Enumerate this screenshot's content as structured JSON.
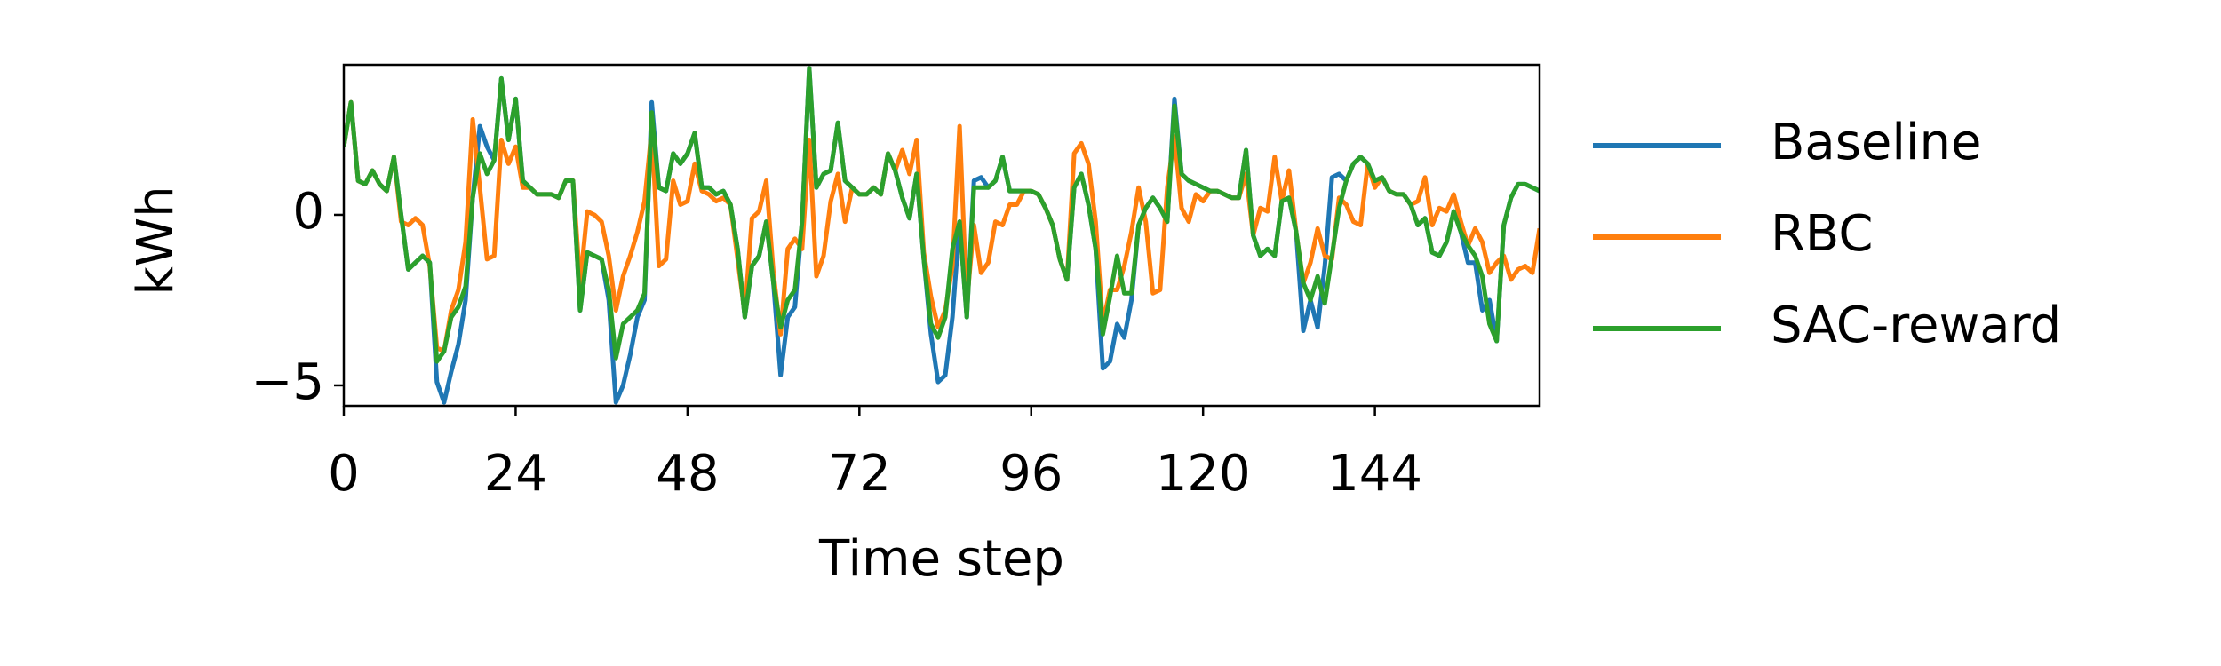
{
  "chart_data": {
    "type": "line",
    "x_label": "Time step",
    "y_label": "kWh",
    "x": [
      0,
      1,
      2,
      3,
      4,
      5,
      6,
      7,
      8,
      9,
      10,
      11,
      12,
      13,
      14,
      15,
      16,
      17,
      18,
      19,
      20,
      21,
      22,
      23,
      24,
      25,
      26,
      27,
      28,
      29,
      30,
      31,
      32,
      33,
      34,
      35,
      36,
      37,
      38,
      39,
      40,
      41,
      42,
      43,
      44,
      45,
      46,
      47,
      48,
      49,
      50,
      51,
      52,
      53,
      54,
      55,
      56,
      57,
      58,
      59,
      60,
      61,
      62,
      63,
      64,
      65,
      66,
      67,
      68,
      69,
      70,
      71,
      72,
      73,
      74,
      75,
      76,
      77,
      78,
      79,
      80,
      81,
      82,
      83,
      84,
      85,
      86,
      87,
      88,
      89,
      90,
      91,
      92,
      93,
      94,
      95,
      96,
      97,
      98,
      99,
      100,
      101,
      102,
      103,
      104,
      105,
      106,
      107,
      108,
      109,
      110,
      111,
      112,
      113,
      114,
      115,
      116,
      117,
      118,
      119,
      120,
      121,
      122,
      123,
      124,
      125,
      126,
      127,
      128,
      129,
      130,
      131,
      132,
      133,
      134,
      135,
      136,
      137,
      138,
      139,
      140,
      141,
      142,
      143,
      144,
      145,
      146,
      147,
      148,
      149,
      150,
      151,
      152,
      153,
      154,
      155,
      156,
      157,
      158,
      159,
      160,
      161,
      162,
      163,
      164,
      165,
      166,
      167
    ],
    "series": [
      {
        "name": "Baseline",
        "color": "#1f77b4",
        "values": [
          2,
          3.3,
          1,
          0.9,
          1.3,
          0.9,
          0.7,
          1.7,
          0,
          -1.6,
          -1.4,
          -1.2,
          -1.4,
          -4.9,
          -5.5,
          -4.6,
          -3.8,
          -2.5,
          0.5,
          2.6,
          2,
          1.6,
          4,
          2.2,
          3.4,
          1,
          0.8,
          0.6,
          0.6,
          0.6,
          0.5,
          1,
          1,
          -2.8,
          -1.1,
          -1.2,
          -1.3,
          -2.5,
          -5.5,
          -5,
          -4.1,
          -3,
          -2.5,
          3.3,
          0.8,
          0.7,
          1.8,
          1.5,
          1.8,
          2.4,
          0.8,
          0.8,
          0.6,
          0.7,
          0.3,
          -1,
          -3,
          -1.5,
          -1.2,
          -0.2,
          -2,
          -4.7,
          -3,
          -2.7,
          -0.2,
          4.3,
          0.8,
          1.2,
          1.3,
          2.7,
          1,
          0.8,
          0.6,
          0.6,
          0.8,
          0.6,
          1.8,
          1.3,
          0.5,
          -0.1,
          1.2,
          -1.3,
          -3.5,
          -4.9,
          -4.7,
          -3,
          -0.2,
          -3,
          1,
          1.1,
          0.8,
          1,
          1.7,
          0.7,
          0.7,
          0.7,
          0.7,
          0.6,
          0.2,
          -0.3,
          -1.3,
          -1.9,
          0.8,
          1.2,
          0.3,
          -1,
          -4.5,
          -4.3,
          -3.2,
          -3.6,
          -2.5,
          -0.3,
          0.2,
          0.5,
          0.2,
          -0.2,
          3.4,
          1.2,
          1,
          0.9,
          0.8,
          0.7,
          0.7,
          0.6,
          0.5,
          0.5,
          1.9,
          -0.6,
          -1.2,
          -1,
          -1.2,
          0.4,
          0.5,
          -0.5,
          -3.4,
          -2.5,
          -3.3,
          -1.5,
          1.1,
          1.2,
          1,
          1.5,
          1.7,
          1.5,
          1,
          1.1,
          0.7,
          0.6,
          0.6,
          0.3,
          -0.3,
          -0.1,
          -1.1,
          -1.2,
          -0.8,
          0.1,
          -0.5,
          -1.4,
          -1.4,
          -2.8,
          -2.5,
          -3.7,
          -0.3,
          0.5,
          0.9,
          0.9,
          0.8,
          0.7
        ]
      },
      {
        "name": "RBC",
        "color": "#ff7f0e",
        "values": [
          2,
          3.3,
          1,
          0.9,
          1.3,
          0.9,
          0.7,
          1.7,
          -0.2,
          -0.3,
          -0.1,
          -0.3,
          -1.5,
          -3.9,
          -4,
          -2.8,
          -2.2,
          -0.8,
          2.8,
          0.8,
          -1.3,
          -1.2,
          2.2,
          1.5,
          2,
          0.8,
          0.8,
          0.6,
          0.6,
          0.6,
          0.5,
          1,
          1,
          -2,
          0.1,
          0,
          -0.2,
          -1.2,
          -2.8,
          -1.8,
          -1.2,
          -0.5,
          0.4,
          2.5,
          -1.5,
          -1.3,
          1,
          0.3,
          0.4,
          1.5,
          0.7,
          0.6,
          0.4,
          0.5,
          0.3,
          -1.3,
          -2.9,
          -0.1,
          0.1,
          1,
          -1.7,
          -3.5,
          -1,
          -0.7,
          -1,
          2.2,
          -1.8,
          -1.2,
          0.4,
          1.2,
          -0.2,
          0.8,
          0.6,
          0.6,
          0.8,
          0.6,
          1.8,
          1.3,
          1.9,
          1.2,
          2.2,
          -1.1,
          -2.4,
          -3.3,
          -2.8,
          -1.5,
          2.6,
          -2.6,
          -0.3,
          -1.7,
          -1.4,
          -0.2,
          -0.3,
          0.3,
          0.3,
          0.7,
          0.7,
          0.6,
          0.2,
          -0.3,
          -1.3,
          -1.9,
          1.8,
          2.1,
          1.5,
          -0.2,
          -3.2,
          -2.2,
          -2.2,
          -1.5,
          -0.5,
          0.8,
          -0.2,
          -2.3,
          -2.2,
          0.8,
          2.3,
          0.2,
          -0.2,
          0.6,
          0.4,
          0.7,
          0.7,
          0.6,
          0.5,
          0.5,
          1.2,
          -0.6,
          0.2,
          0.1,
          1.7,
          0.4,
          1.3,
          -0.5,
          -2,
          -1.4,
          -0.4,
          -1.2,
          -1.3,
          0.5,
          0.3,
          -0.2,
          -0.3,
          1.5,
          0.8,
          1.1,
          0.7,
          0.6,
          0.6,
          0.3,
          0.4,
          1.1,
          -0.3,
          0.2,
          0.1,
          0.6,
          -0.2,
          -0.9,
          -0.4,
          -0.8,
          -1.7,
          -1.4,
          -1.2,
          -1.9,
          -1.6,
          -1.5,
          -1.7,
          -0.4
        ]
      },
      {
        "name": "SAC-reward",
        "color": "#2ca02c",
        "values": [
          2,
          3.3,
          1,
          0.9,
          1.3,
          0.9,
          0.7,
          1.7,
          0,
          -1.6,
          -1.4,
          -1.2,
          -1.4,
          -4.3,
          -4,
          -3,
          -2.7,
          -2.1,
          0.5,
          1.8,
          1.2,
          1.6,
          4,
          2.2,
          3.4,
          1,
          0.8,
          0.6,
          0.6,
          0.6,
          0.5,
          1,
          1,
          -2.8,
          -1.1,
          -1.2,
          -1.3,
          -2.2,
          -4.2,
          -3.2,
          -3,
          -2.8,
          -2.3,
          3,
          0.8,
          0.7,
          1.8,
          1.5,
          1.8,
          2.4,
          0.8,
          0.8,
          0.6,
          0.7,
          0.3,
          -1,
          -3,
          -1.5,
          -1.2,
          -0.2,
          -2,
          -3.3,
          -2.5,
          -2.2,
          -0.2,
          4.3,
          0.8,
          1.2,
          1.3,
          2.7,
          1,
          0.8,
          0.6,
          0.6,
          0.8,
          0.6,
          1.8,
          1.3,
          0.5,
          -0.1,
          1.2,
          -1.3,
          -3.2,
          -3.6,
          -3,
          -1,
          -0.2,
          -3,
          0.8,
          0.8,
          0.8,
          1,
          1.7,
          0.7,
          0.7,
          0.7,
          0.7,
          0.6,
          0.2,
          -0.3,
          -1.3,
          -1.9,
          0.8,
          1.2,
          0.3,
          -1,
          -3.5,
          -2.4,
          -1.2,
          -2.3,
          -2.3,
          -0.3,
          0.2,
          0.5,
          0.2,
          -0.2,
          3.2,
          1.2,
          1,
          0.9,
          0.8,
          0.7,
          0.7,
          0.6,
          0.5,
          0.5,
          1.9,
          -0.6,
          -1.2,
          -1,
          -1.2,
          0.4,
          0.5,
          -0.5,
          -2,
          -2.5,
          -1.8,
          -2.6,
          -1.2,
          0.2,
          1,
          1.5,
          1.7,
          1.5,
          1,
          1.1,
          0.7,
          0.6,
          0.6,
          0.3,
          -0.3,
          -0.1,
          -1.1,
          -1.2,
          -0.8,
          0.1,
          -0.5,
          -0.9,
          -1.2,
          -1.8,
          -3.2,
          -3.7,
          -0.3,
          0.5,
          0.9,
          0.9,
          0.8,
          0.7
        ]
      }
    ],
    "xlim": [
      0,
      167
    ],
    "xticks": [
      0,
      24,
      48,
      72,
      96,
      120,
      144
    ],
    "ylim": [
      -5.6,
      4.4
    ],
    "yticks": [
      {
        "value": -5,
        "label": "−5"
      },
      0
    ],
    "grid": false,
    "legend": "outside right"
  }
}
